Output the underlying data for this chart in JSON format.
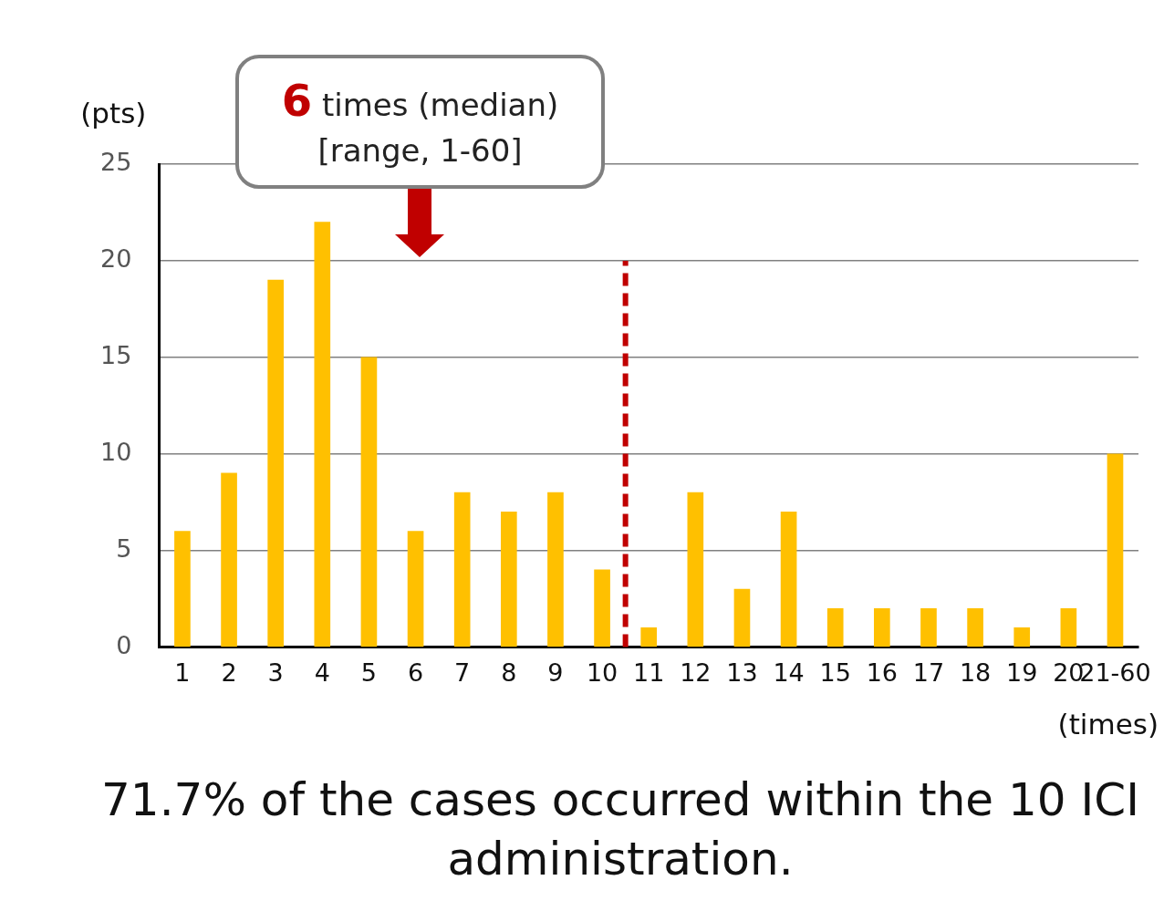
{
  "chart_data": {
    "type": "bar",
    "ylabel": "(pts)",
    "xlabel": "(times)",
    "x": [
      1,
      2,
      3,
      4,
      5,
      6,
      7,
      8,
      9,
      10,
      11,
      12,
      13,
      14,
      15,
      16,
      17,
      18,
      19,
      20,
      21
    ],
    "values": [
      6,
      9,
      19,
      22,
      15,
      6,
      8,
      7,
      8,
      4,
      1,
      8,
      3,
      7,
      2,
      2,
      2,
      2,
      1,
      2,
      10
    ],
    "color": "#ffc000",
    "xlim": [
      0.5,
      21.5
    ],
    "xticks": [
      1,
      2,
      3,
      4,
      5,
      6,
      7,
      8,
      9,
      10,
      11,
      12,
      13,
      14,
      15,
      16,
      17,
      18,
      19,
      20,
      {
        "value": 21,
        "label": "21-60"
      }
    ],
    "ylim": [
      0,
      25
    ],
    "yticks": [
      0,
      5,
      10,
      15,
      20,
      25
    ],
    "grid": "y",
    "ref_lines": [
      {
        "axis": "x",
        "value": 10.5,
        "color": "#c00000",
        "line_style": "dashed"
      }
    ],
    "annotations": [
      "6 times (median) [range, 1-60]",
      "71.7% of the cases occurred within the 10 ICI administration."
    ]
  }
}
